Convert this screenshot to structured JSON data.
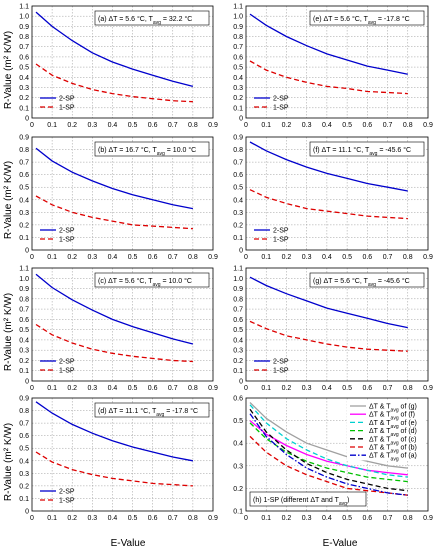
{
  "figure": {
    "ylabel": "R-Value (m² K/W)",
    "xlabel": "E-Value"
  },
  "chart_data": [
    {
      "id": "a",
      "type": "line",
      "annotation": {
        "prefix": "(a) ΔT = 5.6 °C, T",
        "sub": "avg",
        "suffix": " = 32.2 °C"
      },
      "xlim": [
        0,
        0.9
      ],
      "ylim": [
        0,
        1.1
      ],
      "xticks": [
        "0",
        "0.1",
        "0.2",
        "0.3",
        "0.4",
        "0.5",
        "0.6",
        "0.7",
        "0.8",
        "0.9"
      ],
      "yticks": [
        "0",
        "0.1",
        "0.2",
        "0.3",
        "0.4",
        "0.5",
        "0.6",
        "0.7",
        "0.8",
        "0.9",
        "1.0",
        "1.1"
      ],
      "series": [
        {
          "name": "2-SP",
          "color": "#0000cc",
          "dash": "solid",
          "x": [
            0.02,
            0.1,
            0.2,
            0.3,
            0.4,
            0.5,
            0.6,
            0.7,
            0.8
          ],
          "y": [
            1.04,
            0.9,
            0.76,
            0.64,
            0.55,
            0.48,
            0.42,
            0.36,
            0.31
          ]
        },
        {
          "name": "1-SP",
          "color": "#dd0000",
          "dash": "dashed",
          "x": [
            0.02,
            0.1,
            0.2,
            0.3,
            0.4,
            0.5,
            0.6,
            0.7,
            0.8
          ],
          "y": [
            0.53,
            0.42,
            0.34,
            0.28,
            0.24,
            0.21,
            0.19,
            0.17,
            0.16
          ]
        }
      ]
    },
    {
      "id": "e",
      "type": "line",
      "annotation": {
        "prefix": "(e) ΔT = 5.6 °C, T",
        "sub": "avg",
        "suffix": " = -17.8 °C"
      },
      "xlim": [
        0,
        0.9
      ],
      "ylim": [
        0,
        1.1
      ],
      "xticks": [
        "0",
        "0.1",
        "0.2",
        "0.3",
        "0.4",
        "0.5",
        "0.6",
        "0.7",
        "0.8",
        "0.9"
      ],
      "yticks": [
        "0",
        "0.1",
        "0.2",
        "0.3",
        "0.4",
        "0.5",
        "0.6",
        "0.7",
        "0.8",
        "0.9",
        "1.0",
        "1.1"
      ],
      "series": [
        {
          "name": "2-SP",
          "color": "#0000cc",
          "dash": "solid",
          "x": [
            0.02,
            0.1,
            0.2,
            0.3,
            0.4,
            0.5,
            0.6,
            0.7,
            0.8
          ],
          "y": [
            1.02,
            0.91,
            0.8,
            0.71,
            0.63,
            0.57,
            0.51,
            0.47,
            0.43
          ]
        },
        {
          "name": "1-SP",
          "color": "#dd0000",
          "dash": "dashed",
          "x": [
            0.02,
            0.1,
            0.2,
            0.3,
            0.4,
            0.5,
            0.6,
            0.7,
            0.8
          ],
          "y": [
            0.56,
            0.47,
            0.4,
            0.35,
            0.31,
            0.29,
            0.26,
            0.25,
            0.24
          ]
        }
      ]
    },
    {
      "id": "b",
      "type": "line",
      "annotation": {
        "prefix": "(b) ΔT = 16.7 °C, T",
        "sub": "avg",
        "suffix": " = 10.0 °C"
      },
      "xlim": [
        0,
        0.9
      ],
      "ylim": [
        0,
        0.9
      ],
      "xticks": [
        "0",
        "0.1",
        "0.2",
        "0.3",
        "0.4",
        "0.5",
        "0.6",
        "0.7",
        "0.8",
        "0.9"
      ],
      "yticks": [
        "0",
        "0.1",
        "0.2",
        "0.3",
        "0.4",
        "0.5",
        "0.6",
        "0.7",
        "0.8",
        "0.9"
      ],
      "series": [
        {
          "name": "2-SP",
          "color": "#0000cc",
          "dash": "solid",
          "x": [
            0.02,
            0.1,
            0.2,
            0.3,
            0.4,
            0.5,
            0.6,
            0.7,
            0.8
          ],
          "y": [
            0.81,
            0.71,
            0.62,
            0.55,
            0.49,
            0.44,
            0.4,
            0.36,
            0.33
          ]
        },
        {
          "name": "1-SP",
          "color": "#dd0000",
          "dash": "dashed",
          "x": [
            0.02,
            0.1,
            0.2,
            0.3,
            0.4,
            0.5,
            0.6,
            0.7,
            0.8
          ],
          "y": [
            0.43,
            0.36,
            0.3,
            0.26,
            0.23,
            0.2,
            0.19,
            0.18,
            0.17
          ]
        }
      ]
    },
    {
      "id": "f",
      "type": "line",
      "annotation": {
        "prefix": "(f) ΔT = 11.1 °C, T",
        "sub": "avg",
        "suffix": " = -45.6 °C"
      },
      "xlim": [
        0,
        0.9
      ],
      "ylim": [
        0,
        0.9
      ],
      "xticks": [
        "0",
        "0.1",
        "0.2",
        "0.3",
        "0.4",
        "0.5",
        "0.6",
        "0.7",
        "0.8",
        "0.9"
      ],
      "yticks": [
        "0",
        "0.1",
        "0.2",
        "0.3",
        "0.4",
        "0.5",
        "0.6",
        "0.7",
        "0.8",
        "0.9"
      ],
      "series": [
        {
          "name": "2-SP",
          "color": "#0000cc",
          "dash": "solid",
          "x": [
            0.02,
            0.1,
            0.2,
            0.3,
            0.4,
            0.5,
            0.6,
            0.7,
            0.8
          ],
          "y": [
            0.86,
            0.79,
            0.72,
            0.66,
            0.61,
            0.57,
            0.53,
            0.5,
            0.47
          ]
        },
        {
          "name": "1-SP",
          "color": "#dd0000",
          "dash": "dashed",
          "x": [
            0.02,
            0.1,
            0.2,
            0.3,
            0.4,
            0.5,
            0.6,
            0.7,
            0.8
          ],
          "y": [
            0.48,
            0.42,
            0.37,
            0.33,
            0.31,
            0.29,
            0.27,
            0.26,
            0.25
          ]
        }
      ]
    },
    {
      "id": "c",
      "type": "line",
      "annotation": {
        "prefix": "(c) ΔT = 5.6 °C, T",
        "sub": "avg",
        "suffix": " = 10.0 °C"
      },
      "xlim": [
        0,
        0.9
      ],
      "ylim": [
        0,
        1.1
      ],
      "xticks": [
        "0",
        "0.1",
        "0.2",
        "0.3",
        "0.4",
        "0.5",
        "0.6",
        "0.7",
        "0.8",
        "0.9"
      ],
      "yticks": [
        "0",
        "0.1",
        "0.2",
        "0.3",
        "0.4",
        "0.5",
        "0.6",
        "0.7",
        "0.8",
        "0.9",
        "1.0",
        "1.1"
      ],
      "series": [
        {
          "name": "2-SP",
          "color": "#0000cc",
          "dash": "solid",
          "x": [
            0.02,
            0.1,
            0.2,
            0.3,
            0.4,
            0.5,
            0.6,
            0.7,
            0.8
          ],
          "y": [
            1.04,
            0.91,
            0.79,
            0.69,
            0.6,
            0.53,
            0.47,
            0.41,
            0.36
          ]
        },
        {
          "name": "1-SP",
          "color": "#dd0000",
          "dash": "dashed",
          "x": [
            0.02,
            0.1,
            0.2,
            0.3,
            0.4,
            0.5,
            0.6,
            0.7,
            0.8
          ],
          "y": [
            0.55,
            0.45,
            0.37,
            0.31,
            0.27,
            0.24,
            0.22,
            0.2,
            0.19
          ]
        }
      ]
    },
    {
      "id": "g",
      "type": "line",
      "annotation": {
        "prefix": "(g) ΔT = 5.6 °C, T",
        "sub": "avg",
        "suffix": " = -45.6 °C"
      },
      "xlim": [
        0,
        0.9
      ],
      "ylim": [
        0,
        1.1
      ],
      "xticks": [
        "0",
        "0.1",
        "0.2",
        "0.3",
        "0.4",
        "0.5",
        "0.6",
        "0.7",
        "0.8",
        "0.9"
      ],
      "yticks": [
        "0",
        "0.1",
        "0.2",
        "0.3",
        "0.4",
        "0.5",
        "0.6",
        "0.7",
        "0.8",
        "0.9",
        "1.0",
        "1.1"
      ],
      "series": [
        {
          "name": "2-SP",
          "color": "#0000cc",
          "dash": "solid",
          "x": [
            0.02,
            0.1,
            0.2,
            0.3,
            0.4,
            0.5,
            0.6,
            0.7,
            0.8
          ],
          "y": [
            1.01,
            0.93,
            0.85,
            0.78,
            0.71,
            0.66,
            0.61,
            0.56,
            0.52
          ]
        },
        {
          "name": "1-SP",
          "color": "#dd0000",
          "dash": "dashed",
          "x": [
            0.02,
            0.1,
            0.2,
            0.3,
            0.4,
            0.5,
            0.6,
            0.7,
            0.8
          ],
          "y": [
            0.58,
            0.51,
            0.44,
            0.4,
            0.36,
            0.33,
            0.31,
            0.3,
            0.29
          ]
        }
      ]
    },
    {
      "id": "d",
      "type": "line",
      "annotation": {
        "prefix": "(d) ΔT = 11.1 °C, T",
        "sub": "avg",
        "suffix": " = -17.8 °C"
      },
      "xlim": [
        0,
        0.9
      ],
      "ylim": [
        0,
        0.9
      ],
      "xticks": [
        "0",
        "0.1",
        "0.2",
        "0.3",
        "0.4",
        "0.5",
        "0.6",
        "0.7",
        "0.8",
        "0.9"
      ],
      "yticks": [
        "0",
        "0.1",
        "0.2",
        "0.3",
        "0.4",
        "0.5",
        "0.6",
        "0.7",
        "0.8",
        "0.9"
      ],
      "series": [
        {
          "name": "2-SP",
          "color": "#0000cc",
          "dash": "solid",
          "x": [
            0.02,
            0.1,
            0.2,
            0.3,
            0.4,
            0.5,
            0.6,
            0.7,
            0.8
          ],
          "y": [
            0.87,
            0.78,
            0.69,
            0.62,
            0.56,
            0.51,
            0.47,
            0.43,
            0.4
          ]
        },
        {
          "name": "1-SP",
          "color": "#dd0000",
          "dash": "dashed",
          "x": [
            0.02,
            0.1,
            0.2,
            0.3,
            0.4,
            0.5,
            0.6,
            0.7,
            0.8
          ],
          "y": [
            0.47,
            0.39,
            0.33,
            0.29,
            0.26,
            0.24,
            0.22,
            0.21,
            0.2
          ]
        }
      ]
    },
    {
      "id": "h",
      "type": "line",
      "annotation": {
        "prefix": "(h) 1-SP (different ΔT and T",
        "sub": "avg",
        "suffix": ")"
      },
      "xlim": [
        0,
        0.9
      ],
      "ylim": [
        0.1,
        0.6
      ],
      "xticks": [
        "0",
        "0.1",
        "0.2",
        "0.3",
        "0.4",
        "0.5",
        "0.6",
        "0.7",
        "0.8",
        "0.9"
      ],
      "yticks": [
        "0.1",
        "0.2",
        "0.3",
        "0.4",
        "0.5",
        "0.6"
      ],
      "legend_label": {
        "prefix": "ΔT & T",
        "sub": "avg",
        "mid": " of ("
      },
      "series": [
        {
          "name": "g",
          "color": "#a0a0a0",
          "dash": "solid",
          "x": [
            0.02,
            0.1,
            0.2,
            0.3,
            0.4,
            0.5,
            0.6,
            0.7,
            0.8
          ],
          "y": [
            0.58,
            0.51,
            0.45,
            0.4,
            0.37,
            0.34,
            0.32,
            0.3,
            0.29
          ]
        },
        {
          "name": "f",
          "color": "#ff00ff",
          "dash": "solid",
          "x": [
            0.02,
            0.1,
            0.2,
            0.3,
            0.4,
            0.5,
            0.6,
            0.7,
            0.8
          ],
          "y": [
            0.5,
            0.44,
            0.39,
            0.35,
            0.32,
            0.3,
            0.28,
            0.27,
            0.26
          ]
        },
        {
          "name": "e",
          "color": "#00d0d0",
          "dash": "dashed",
          "x": [
            0.02,
            0.1,
            0.2,
            0.3,
            0.4,
            0.5,
            0.6,
            0.7,
            0.8
          ],
          "y": [
            0.57,
            0.49,
            0.42,
            0.37,
            0.33,
            0.3,
            0.28,
            0.26,
            0.25
          ]
        },
        {
          "name": "d",
          "color": "#00c000",
          "dash": "dashed",
          "x": [
            0.02,
            0.1,
            0.2,
            0.3,
            0.4,
            0.5,
            0.6,
            0.7,
            0.8
          ],
          "y": [
            0.49,
            0.42,
            0.36,
            0.32,
            0.29,
            0.27,
            0.25,
            0.24,
            0.23
          ]
        },
        {
          "name": "c",
          "color": "#000000",
          "dash": "dashed",
          "x": [
            0.02,
            0.1,
            0.2,
            0.3,
            0.4,
            0.5,
            0.6,
            0.7,
            0.8
          ],
          "y": [
            0.55,
            0.45,
            0.37,
            0.31,
            0.27,
            0.24,
            0.22,
            0.2,
            0.19
          ]
        },
        {
          "name": "b",
          "color": "#dd0000",
          "dash": "dashed",
          "x": [
            0.02,
            0.1,
            0.2,
            0.3,
            0.4,
            0.5,
            0.6,
            0.7,
            0.8
          ],
          "y": [
            0.43,
            0.36,
            0.3,
            0.26,
            0.23,
            0.2,
            0.19,
            0.18,
            0.17
          ]
        },
        {
          "name": "a",
          "color": "#0000cc",
          "dash": "dashdot",
          "x": [
            0.02,
            0.1,
            0.2,
            0.3,
            0.4,
            0.5,
            0.6,
            0.7,
            0.8
          ],
          "y": [
            0.53,
            0.43,
            0.35,
            0.29,
            0.25,
            0.22,
            0.2,
            0.18,
            0.17
          ]
        }
      ]
    }
  ]
}
